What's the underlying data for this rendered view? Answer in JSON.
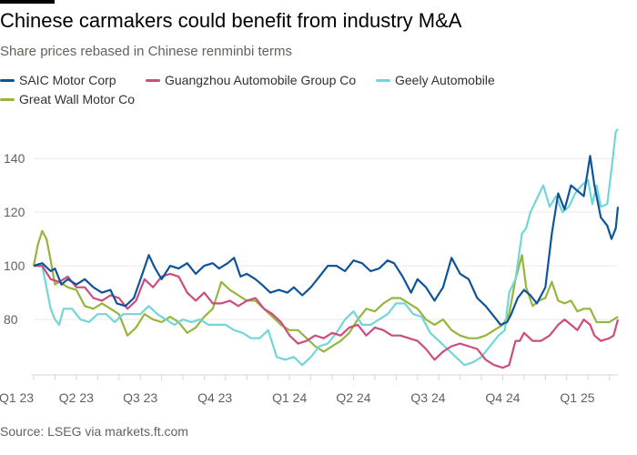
{
  "header": {
    "title": "Chinese carmakers could benefit from industry M&A",
    "subtitle": "Share prices rebased in Chinese renminbi terms"
  },
  "footer": {
    "source": "Source: LSEG via markets.ft.com"
  },
  "chart_data": {
    "type": "line",
    "title": "Chinese carmakers could benefit from industry M&A",
    "subtitle": "Share prices rebased in Chinese renminbi terms",
    "xlabel": "",
    "ylabel": "",
    "xlim": [
      0,
      27.4
    ],
    "ylim": [
      60,
      155
    ],
    "yticks": [
      80,
      100,
      120,
      140
    ],
    "grid": true,
    "legend_position": "top-left",
    "x_ticks": [
      {
        "label": "Q1 23",
        "x": 0
      },
      {
        "label": "Q2 23",
        "x": 2
      },
      {
        "label": "Q3 23",
        "x": 5
      },
      {
        "label": "Q4 23",
        "x": 8.5
      },
      {
        "label": "Q1 24",
        "x": 12
      },
      {
        "label": "Q2 24",
        "x": 15
      },
      {
        "label": "Q3 24",
        "x": 18.5
      },
      {
        "label": "Q4 24",
        "x": 22
      },
      {
        "label": "Q1 25",
        "x": 25.5
      }
    ],
    "month_ticks": [
      0,
      1,
      2,
      3,
      4,
      5,
      6,
      7,
      8,
      9,
      10,
      11,
      12,
      13,
      14,
      15,
      16,
      17,
      18,
      19,
      20,
      21,
      22,
      23,
      24,
      25,
      26,
      27
    ],
    "series": [
      {
        "name": "SAIC Motor Corp",
        "color": "#0f5499",
        "points": [
          [
            0,
            100
          ],
          [
            0.4,
            101
          ],
          [
            0.8,
            98
          ],
          [
            1,
            99
          ],
          [
            1.3,
            93
          ],
          [
            1.6,
            95
          ],
          [
            2,
            93
          ],
          [
            2.4,
            95
          ],
          [
            2.8,
            92
          ],
          [
            3.2,
            90
          ],
          [
            3.6,
            91
          ],
          [
            3.9,
            86
          ],
          [
            4.3,
            85
          ],
          [
            4.7,
            88
          ],
          [
            5.1,
            97
          ],
          [
            5.4,
            104
          ],
          [
            5.7,
            99
          ],
          [
            6,
            95
          ],
          [
            6.4,
            100
          ],
          [
            6.8,
            99
          ],
          [
            7.2,
            101
          ],
          [
            7.6,
            97
          ],
          [
            8,
            100
          ],
          [
            8.4,
            101
          ],
          [
            8.7,
            99
          ],
          [
            9.1,
            101
          ],
          [
            9.4,
            103
          ],
          [
            9.7,
            96
          ],
          [
            10,
            97
          ],
          [
            10.4,
            95
          ],
          [
            10.7,
            93
          ],
          [
            11.1,
            90
          ],
          [
            11.5,
            91
          ],
          [
            11.9,
            90
          ],
          [
            12.2,
            92
          ],
          [
            12.6,
            89
          ],
          [
            13,
            92
          ],
          [
            13.4,
            96
          ],
          [
            13.8,
            100
          ],
          [
            14.2,
            100
          ],
          [
            14.6,
            98
          ],
          [
            15,
            102
          ],
          [
            15.4,
            101
          ],
          [
            15.8,
            98
          ],
          [
            16.2,
            99
          ],
          [
            16.6,
            102
          ],
          [
            16.9,
            101
          ],
          [
            17.3,
            96
          ],
          [
            17.7,
            90
          ],
          [
            18,
            95
          ],
          [
            18.4,
            92
          ],
          [
            18.8,
            87
          ],
          [
            19.2,
            92
          ],
          [
            19.6,
            103
          ],
          [
            20,
            97
          ],
          [
            20.4,
            95
          ],
          [
            20.8,
            88
          ],
          [
            21.2,
            85
          ],
          [
            21.6,
            81
          ],
          [
            21.9,
            78
          ],
          [
            22.2,
            79
          ],
          [
            22.4,
            82
          ],
          [
            22.7,
            88
          ],
          [
            23,
            91
          ],
          [
            23.3,
            89
          ],
          [
            23.6,
            86
          ],
          [
            24,
            92
          ],
          [
            24.3,
            112
          ],
          [
            24.6,
            127
          ],
          [
            24.9,
            121
          ],
          [
            25.2,
            130
          ],
          [
            25.5,
            128
          ],
          [
            25.8,
            126
          ],
          [
            26.1,
            141
          ],
          [
            26.3,
            130
          ],
          [
            26.6,
            118
          ],
          [
            26.9,
            115
          ],
          [
            27.1,
            110
          ],
          [
            27.3,
            114
          ],
          [
            27.4,
            122
          ]
        ]
      },
      {
        "name": "Guangzhou Automobile Group Co",
        "color": "#cc4d7d",
        "points": [
          [
            0,
            100
          ],
          [
            0.4,
            100
          ],
          [
            0.8,
            95
          ],
          [
            1.2,
            94
          ],
          [
            1.6,
            96
          ],
          [
            2,
            92
          ],
          [
            2.4,
            92
          ],
          [
            2.8,
            88
          ],
          [
            3.2,
            87
          ],
          [
            3.6,
            89
          ],
          [
            4,
            88
          ],
          [
            4.4,
            84
          ],
          [
            4.8,
            87
          ],
          [
            5.2,
            95
          ],
          [
            5.6,
            92
          ],
          [
            6,
            96
          ],
          [
            6.4,
            97
          ],
          [
            6.8,
            96
          ],
          [
            7.2,
            90
          ],
          [
            7.6,
            87
          ],
          [
            8,
            90
          ],
          [
            8.4,
            86
          ],
          [
            8.8,
            86
          ],
          [
            9.2,
            87
          ],
          [
            9.6,
            85
          ],
          [
            10,
            87
          ],
          [
            10.4,
            88
          ],
          [
            10.8,
            84
          ],
          [
            11.2,
            82
          ],
          [
            11.6,
            79
          ],
          [
            12,
            74
          ],
          [
            12.4,
            71
          ],
          [
            12.8,
            72
          ],
          [
            13.2,
            74
          ],
          [
            13.6,
            73
          ],
          [
            14,
            75
          ],
          [
            14.4,
            74
          ],
          [
            14.8,
            77
          ],
          [
            15.2,
            78
          ],
          [
            15.6,
            74
          ],
          [
            16,
            77
          ],
          [
            16.4,
            76
          ],
          [
            16.8,
            74
          ],
          [
            17.2,
            74
          ],
          [
            17.6,
            73
          ],
          [
            18,
            72
          ],
          [
            18.4,
            69
          ],
          [
            18.8,
            65
          ],
          [
            19.2,
            68
          ],
          [
            19.6,
            70
          ],
          [
            20,
            71
          ],
          [
            20.4,
            70
          ],
          [
            20.8,
            69
          ],
          [
            21.2,
            65
          ],
          [
            21.6,
            63
          ],
          [
            22,
            62
          ],
          [
            22.3,
            63
          ],
          [
            22.6,
            72
          ],
          [
            22.8,
            72
          ],
          [
            23,
            75
          ],
          [
            23.4,
            72
          ],
          [
            23.8,
            72
          ],
          [
            24.2,
            74
          ],
          [
            24.6,
            78
          ],
          [
            24.9,
            80
          ],
          [
            25.2,
            78
          ],
          [
            25.5,
            76
          ],
          [
            25.8,
            80
          ],
          [
            26.1,
            78
          ],
          [
            26.3,
            74
          ],
          [
            26.6,
            72
          ],
          [
            27,
            73
          ],
          [
            27.2,
            74
          ],
          [
            27.4,
            80
          ]
        ]
      },
      {
        "name": "Geely Automobile",
        "color": "#72d6d7",
        "points": [
          [
            0,
            100
          ],
          [
            0.4,
            100
          ],
          [
            0.8,
            84
          ],
          [
            1,
            80
          ],
          [
            1.2,
            78
          ],
          [
            1.4,
            84
          ],
          [
            1.8,
            84
          ],
          [
            2.2,
            80
          ],
          [
            2.6,
            79
          ],
          [
            3,
            82
          ],
          [
            3.4,
            82
          ],
          [
            3.8,
            79
          ],
          [
            4.2,
            82
          ],
          [
            4.6,
            82
          ],
          [
            5,
            82
          ],
          [
            5.4,
            85
          ],
          [
            5.8,
            82
          ],
          [
            6.2,
            80
          ],
          [
            6.6,
            78
          ],
          [
            7,
            80
          ],
          [
            7.4,
            79
          ],
          [
            7.8,
            80
          ],
          [
            8.2,
            78
          ],
          [
            8.6,
            78
          ],
          [
            9,
            78
          ],
          [
            9.4,
            76
          ],
          [
            9.8,
            75
          ],
          [
            10.2,
            73
          ],
          [
            10.6,
            73
          ],
          [
            11,
            76
          ],
          [
            11.4,
            66
          ],
          [
            11.8,
            65
          ],
          [
            12.2,
            66
          ],
          [
            12.6,
            63
          ],
          [
            13,
            66
          ],
          [
            13.4,
            70
          ],
          [
            13.8,
            71
          ],
          [
            14.2,
            75
          ],
          [
            14.6,
            80
          ],
          [
            15,
            83
          ],
          [
            15.4,
            78
          ],
          [
            15.8,
            78
          ],
          [
            16.2,
            80
          ],
          [
            16.6,
            82
          ],
          [
            17,
            86
          ],
          [
            17.4,
            86
          ],
          [
            17.8,
            82
          ],
          [
            18.2,
            81
          ],
          [
            18.6,
            75
          ],
          [
            19,
            72
          ],
          [
            19.4,
            69
          ],
          [
            19.8,
            66
          ],
          [
            20.2,
            63
          ],
          [
            20.6,
            64
          ],
          [
            21,
            66
          ],
          [
            21.4,
            70
          ],
          [
            21.8,
            74
          ],
          [
            22.1,
            76
          ],
          [
            22.3,
            90
          ],
          [
            22.6,
            95
          ],
          [
            22.9,
            112
          ],
          [
            23.1,
            114
          ],
          [
            23.3,
            120
          ],
          [
            23.6,
            125
          ],
          [
            23.9,
            130
          ],
          [
            24.2,
            122
          ],
          [
            24.5,
            126
          ],
          [
            24.8,
            120
          ],
          [
            25.1,
            122
          ],
          [
            25.4,
            127
          ],
          [
            25.7,
            130
          ],
          [
            26,
            132
          ],
          [
            26.2,
            123
          ],
          [
            26.4,
            130
          ],
          [
            26.6,
            122
          ],
          [
            26.9,
            123
          ],
          [
            27.1,
            136
          ],
          [
            27.3,
            150
          ],
          [
            27.4,
            151
          ]
        ]
      },
      {
        "name": "Great Wall Motor Co",
        "color": "#96b53c",
        "points": [
          [
            0,
            100
          ],
          [
            0.2,
            108
          ],
          [
            0.4,
            113
          ],
          [
            0.6,
            110
          ],
          [
            0.8,
            102
          ],
          [
            1,
            93
          ],
          [
            1.2,
            94
          ],
          [
            1.6,
            92
          ],
          [
            2,
            91
          ],
          [
            2.4,
            85
          ],
          [
            2.8,
            84
          ],
          [
            3.2,
            86
          ],
          [
            3.6,
            84
          ],
          [
            4,
            82
          ],
          [
            4.4,
            74
          ],
          [
            4.8,
            77
          ],
          [
            5.2,
            82
          ],
          [
            5.6,
            80
          ],
          [
            6,
            79
          ],
          [
            6.4,
            81
          ],
          [
            6.8,
            79
          ],
          [
            7.2,
            75
          ],
          [
            7.6,
            77
          ],
          [
            8,
            81
          ],
          [
            8.4,
            84
          ],
          [
            8.8,
            94
          ],
          [
            9.2,
            91
          ],
          [
            9.6,
            89
          ],
          [
            10,
            87
          ],
          [
            10.4,
            87
          ],
          [
            10.8,
            84
          ],
          [
            11.2,
            81
          ],
          [
            11.6,
            78
          ],
          [
            12,
            76
          ],
          [
            12.4,
            76
          ],
          [
            12.8,
            73
          ],
          [
            13.2,
            70
          ],
          [
            13.6,
            68
          ],
          [
            14,
            70
          ],
          [
            14.4,
            72
          ],
          [
            14.8,
            75
          ],
          [
            15.2,
            80
          ],
          [
            15.6,
            84
          ],
          [
            16,
            83
          ],
          [
            16.4,
            86
          ],
          [
            16.8,
            88
          ],
          [
            17.2,
            88
          ],
          [
            17.6,
            86
          ],
          [
            18,
            84
          ],
          [
            18.4,
            80
          ],
          [
            18.8,
            78
          ],
          [
            19.2,
            80
          ],
          [
            19.6,
            76
          ],
          [
            20,
            74
          ],
          [
            20.4,
            73
          ],
          [
            20.8,
            73
          ],
          [
            21.2,
            74
          ],
          [
            21.6,
            76
          ],
          [
            22,
            78
          ],
          [
            22.3,
            82
          ],
          [
            22.6,
            95
          ],
          [
            22.9,
            104
          ],
          [
            23.1,
            92
          ],
          [
            23.4,
            85
          ],
          [
            23.7,
            87
          ],
          [
            24,
            88
          ],
          [
            24.3,
            94
          ],
          [
            24.6,
            87
          ],
          [
            24.9,
            86
          ],
          [
            25.2,
            87
          ],
          [
            25.5,
            83
          ],
          [
            25.8,
            84
          ],
          [
            26.1,
            84
          ],
          [
            26.4,
            79
          ],
          [
            26.7,
            79
          ],
          [
            27,
            79
          ],
          [
            27.2,
            80
          ],
          [
            27.4,
            81
          ]
        ]
      }
    ]
  }
}
